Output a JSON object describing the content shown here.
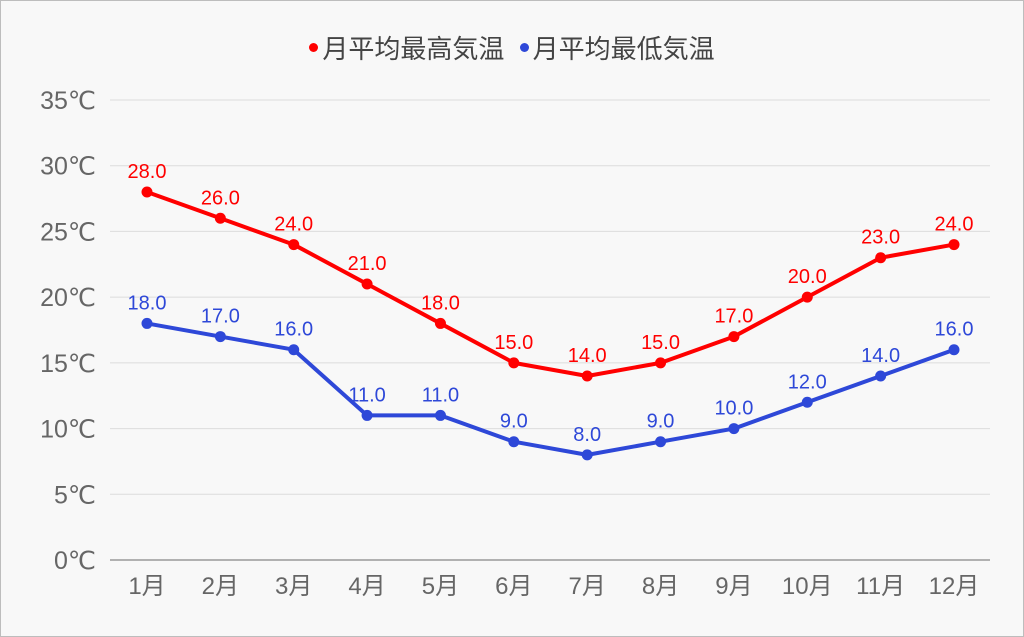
{
  "chart_data": {
    "type": "line",
    "title": "",
    "xlabel": "",
    "ylabel": "",
    "categories": [
      "1月",
      "2月",
      "3月",
      "4月",
      "5月",
      "6月",
      "7月",
      "8月",
      "9月",
      "10月",
      "11月",
      "12月"
    ],
    "ylim": [
      0,
      35
    ],
    "yticks": [
      0,
      5,
      10,
      15,
      20,
      25,
      30,
      35
    ],
    "ytick_suffix": "℃",
    "grid": true,
    "legend": "top",
    "series": [
      {
        "name": "月平均最高気温",
        "color": "#ff0000",
        "values": [
          28,
          26,
          24,
          21,
          18,
          15,
          14,
          15,
          17,
          20,
          23,
          24
        ]
      },
      {
        "name": "月平均最低気温",
        "color": "#2e48d8",
        "values": [
          18,
          17,
          16,
          11,
          11,
          9,
          8,
          9,
          10,
          12,
          14,
          16
        ]
      }
    ]
  }
}
